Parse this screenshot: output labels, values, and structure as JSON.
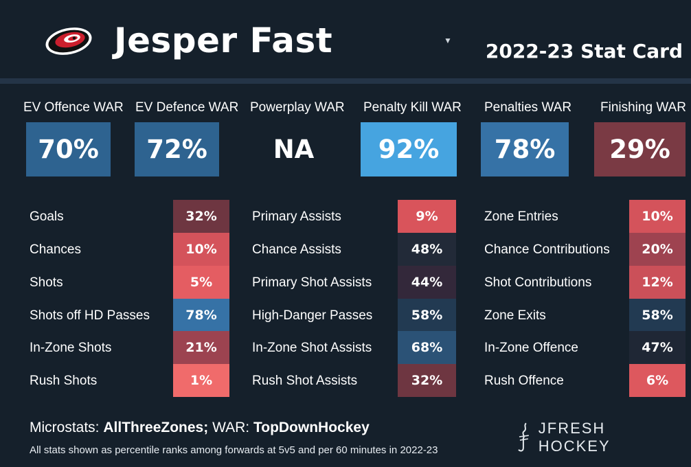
{
  "header": {
    "player_name": "Jesper Fast",
    "card_title": "2022-23 Stat Card",
    "logo_icon": "hurricanes-logo-icon",
    "dropdown_icon": "caret-down-icon"
  },
  "war": [
    {
      "label": "EV Offence WAR",
      "value": "70%",
      "color": "#2e6390"
    },
    {
      "label": "EV Defence WAR",
      "value": "72%",
      "color": "#2e6390"
    },
    {
      "label": "Powerplay WAR",
      "value": "NA",
      "color": "#15202b"
    },
    {
      "label": "Penalty Kill WAR",
      "value": "92%",
      "color": "#46a4e0"
    },
    {
      "label": "Penalties WAR",
      "value": "78%",
      "color": "#3672a6"
    },
    {
      "label": "Finishing WAR",
      "value": "29%",
      "color": "#7a3a44"
    }
  ],
  "stats": {
    "col1": [
      {
        "label": "Goals",
        "value": "32%",
        "color": "#6e3641"
      },
      {
        "label": "Chances",
        "value": "10%",
        "color": "#d4535b"
      },
      {
        "label": "Shots",
        "value": "5%",
        "color": "#e45d62"
      },
      {
        "label": "Shots off HD Passes",
        "value": "78%",
        "color": "#3672a6"
      },
      {
        "label": "In-Zone Shots",
        "value": "21%",
        "color": "#9c4350"
      },
      {
        "label": "Rush Shots",
        "value": "1%",
        "color": "#f06b6b"
      }
    ],
    "col2": [
      {
        "label": "Primary Assists",
        "value": "9%",
        "color": "#d9545b"
      },
      {
        "label": "Chance Assists",
        "value": "48%",
        "color": "#222a38"
      },
      {
        "label": "Primary Shot Assists",
        "value": "44%",
        "color": "#33283a"
      },
      {
        "label": "High-Danger Passes",
        "value": "58%",
        "color": "#223a52"
      },
      {
        "label": "In-Zone Shot Assists",
        "value": "68%",
        "color": "#2b5276"
      },
      {
        "label": "Rush Shot Assists",
        "value": "32%",
        "color": "#6e3641"
      }
    ],
    "col3": [
      {
        "label": "Zone Entries",
        "value": "10%",
        "color": "#d4535b"
      },
      {
        "label": "Chance Contributions",
        "value": "20%",
        "color": "#9e4350"
      },
      {
        "label": "Shot Contributions",
        "value": "12%",
        "color": "#cb5059"
      },
      {
        "label": "Zone Exits",
        "value": "58%",
        "color": "#223a52"
      },
      {
        "label": "In-Zone Offence",
        "value": "47%",
        "color": "#1f2735"
      },
      {
        "label": "Rush Offence",
        "value": "6%",
        "color": "#dd585e"
      }
    ]
  },
  "footer": {
    "microstats_label": "Microstats:",
    "microstats_source": "AllThreeZones;",
    "war_label": "WAR:",
    "war_source": "TopDownHockey",
    "note": "All stats shown as percentile ranks among forwards at 5v5 and per 60 minutes in 2022-23",
    "brand": "JFRESH HOCKEY",
    "brand_icon": "jfresh-logo-icon"
  }
}
